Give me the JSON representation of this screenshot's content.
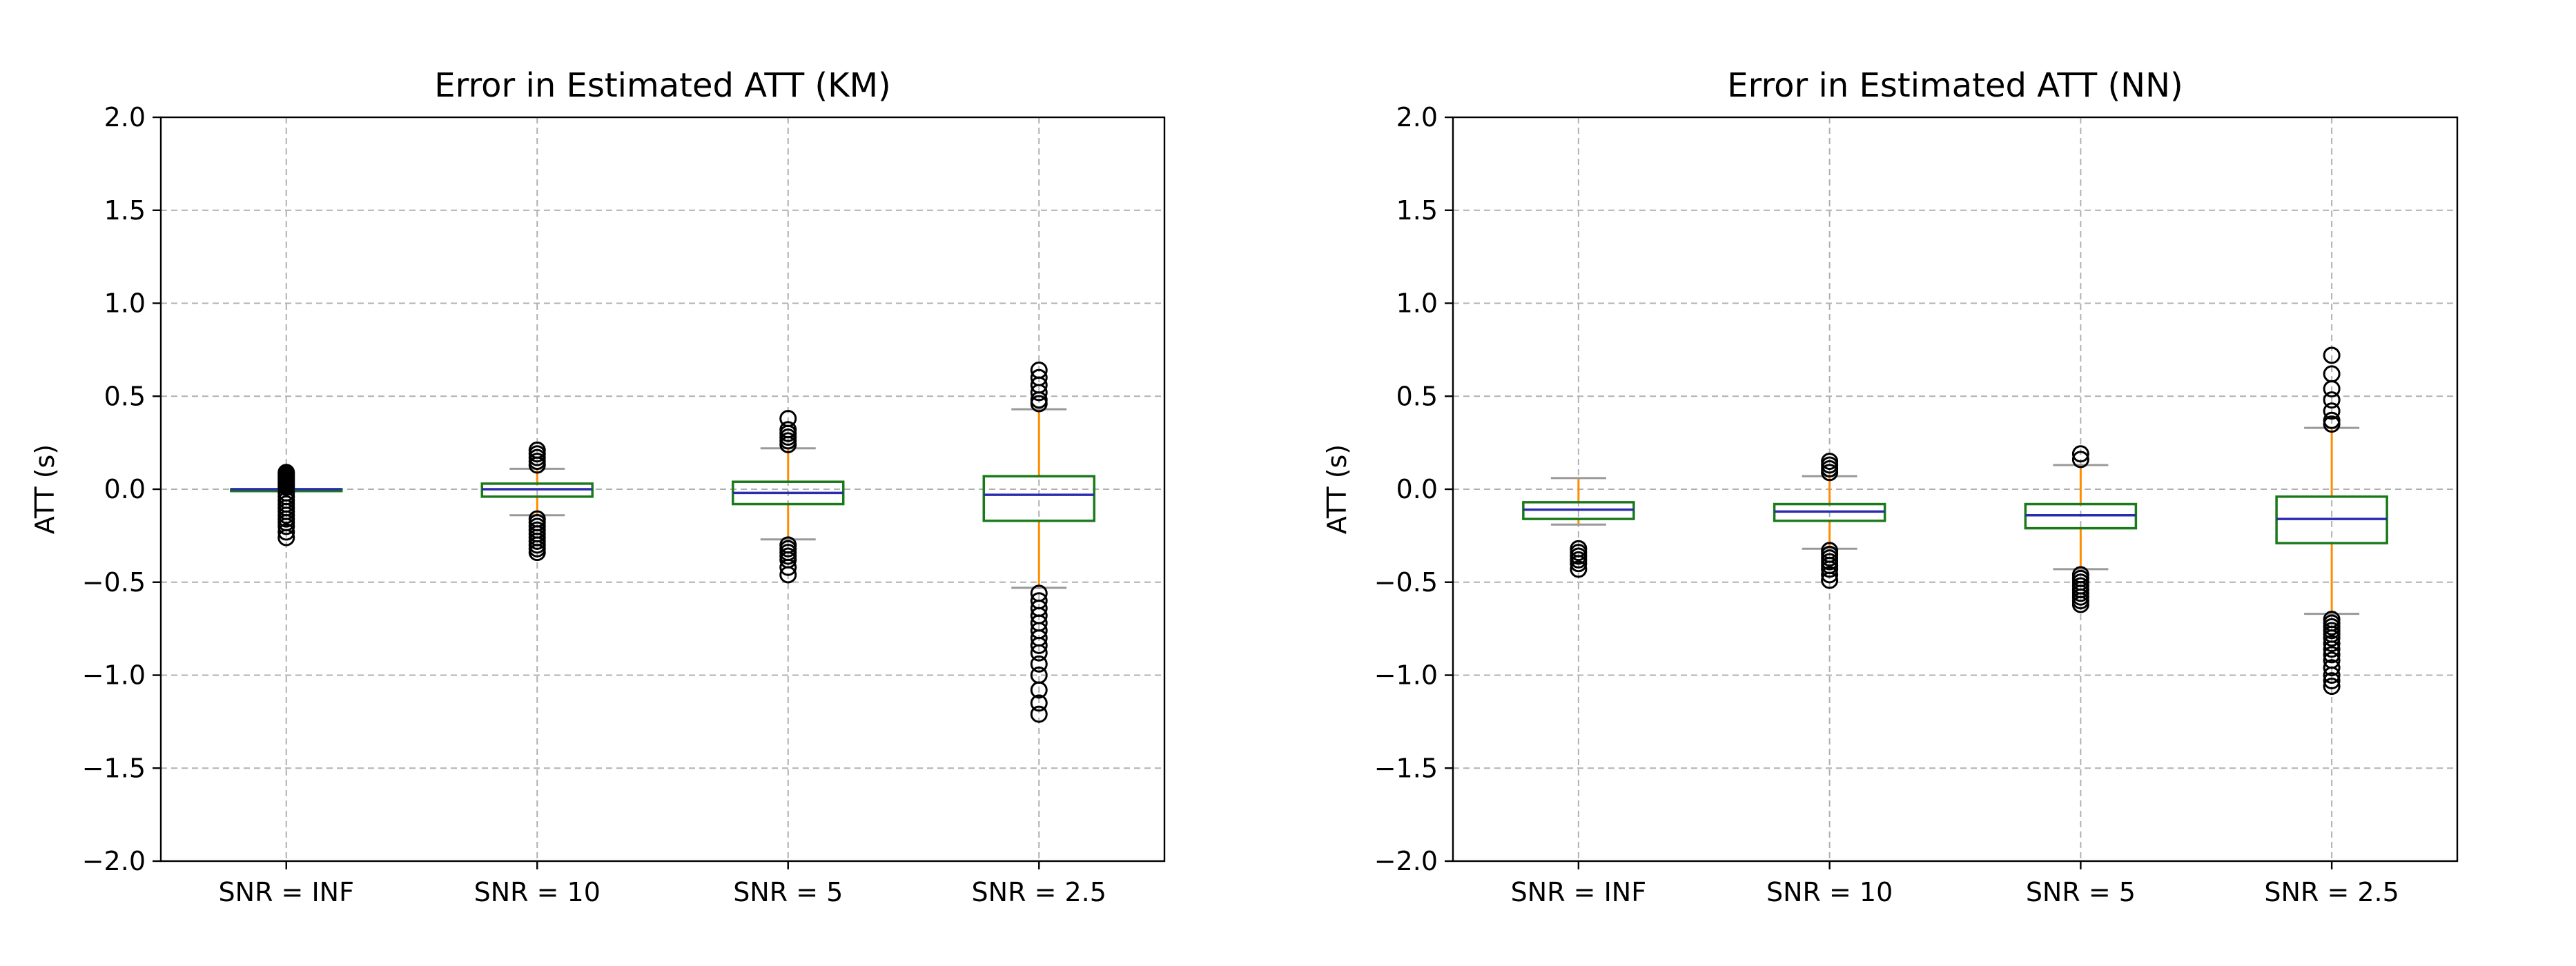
{
  "chart_data": [
    {
      "type": "box",
      "title": "Error in Estimated ATT (KM)",
      "xlabel": "",
      "ylabel": "ATT (s)",
      "ylim": [
        -2.0,
        2.0
      ],
      "yticks": [
        -2.0,
        -1.5,
        -1.0,
        -0.5,
        0.0,
        0.5,
        1.0,
        1.5,
        2.0
      ],
      "ytick_labels": [
        "−2.0",
        "−1.5",
        "−1.0",
        "−0.5",
        "0.0",
        "0.5",
        "1.0",
        "1.5",
        "2.0"
      ],
      "grid": true,
      "categories": [
        "SNR = INF",
        "SNR = 10",
        "SNR = 5",
        "SNR = 2.5"
      ],
      "boxes": [
        {
          "q1": -0.01,
          "median": 0.0,
          "q3": 0.0,
          "whisker_low": -0.01,
          "whisker_high": 0.0,
          "outliers": [
            0.09,
            0.08,
            0.07,
            0.06,
            0.05,
            0.04,
            0.03,
            0.02,
            0.01,
            -0.02,
            -0.04,
            -0.06,
            -0.08,
            -0.1,
            -0.12,
            -0.14,
            -0.16,
            -0.18,
            -0.2,
            -0.23,
            -0.26
          ]
        },
        {
          "q1": -0.04,
          "median": 0.0,
          "q3": 0.03,
          "whisker_low": -0.14,
          "whisker_high": 0.11,
          "outliers": [
            0.21,
            0.19,
            0.17,
            0.15,
            0.13,
            -0.16,
            -0.18,
            -0.2,
            -0.22,
            -0.24,
            -0.26,
            -0.28,
            -0.3,
            -0.32,
            -0.34
          ]
        },
        {
          "q1": -0.08,
          "median": -0.02,
          "q3": 0.04,
          "whisker_low": -0.27,
          "whisker_high": 0.22,
          "outliers": [
            0.38,
            0.32,
            0.3,
            0.28,
            0.26,
            0.24,
            -0.3,
            -0.32,
            -0.34,
            -0.36,
            -0.38,
            -0.42,
            -0.46
          ]
        },
        {
          "q1": -0.17,
          "median": -0.03,
          "q3": 0.07,
          "whisker_low": -0.53,
          "whisker_high": 0.43,
          "outliers": [
            0.64,
            0.6,
            0.56,
            0.52,
            0.48,
            0.46,
            -0.56,
            -0.6,
            -0.64,
            -0.68,
            -0.72,
            -0.76,
            -0.8,
            -0.84,
            -0.88,
            -0.94,
            -1.0,
            -1.08,
            -1.15,
            -1.21
          ]
        }
      ]
    },
    {
      "type": "box",
      "title": "Error in Estimated ATT (NN)",
      "xlabel": "",
      "ylabel": "ATT (s)",
      "ylim": [
        -2.0,
        2.0
      ],
      "yticks": [
        -2.0,
        -1.5,
        -1.0,
        -0.5,
        0.0,
        0.5,
        1.0,
        1.5,
        2.0
      ],
      "ytick_labels": [
        "−2.0",
        "−1.5",
        "−1.0",
        "−0.5",
        "0.0",
        "0.5",
        "1.0",
        "1.5",
        "2.0"
      ],
      "grid": true,
      "categories": [
        "SNR = INF",
        "SNR = 10",
        "SNR = 5",
        "SNR = 2.5"
      ],
      "boxes": [
        {
          "q1": -0.16,
          "median": -0.11,
          "q3": -0.07,
          "whisker_low": -0.19,
          "whisker_high": 0.06,
          "outliers": [
            -0.32,
            -0.34,
            -0.36,
            -0.38,
            -0.4,
            -0.43
          ]
        },
        {
          "q1": -0.17,
          "median": -0.12,
          "q3": -0.08,
          "whisker_low": -0.32,
          "whisker_high": 0.07,
          "outliers": [
            0.15,
            0.13,
            0.11,
            0.09,
            -0.33,
            -0.35,
            -0.37,
            -0.39,
            -0.41,
            -0.43,
            -0.46,
            -0.49
          ]
        },
        {
          "q1": -0.21,
          "median": -0.14,
          "q3": -0.08,
          "whisker_low": -0.43,
          "whisker_high": 0.13,
          "outliers": [
            0.19,
            0.16,
            -0.46,
            -0.48,
            -0.5,
            -0.52,
            -0.54,
            -0.56,
            -0.58,
            -0.6,
            -0.62
          ]
        },
        {
          "q1": -0.29,
          "median": -0.16,
          "q3": -0.04,
          "whisker_low": -0.67,
          "whisker_high": 0.33,
          "outliers": [
            0.72,
            0.62,
            0.54,
            0.48,
            0.42,
            0.37,
            0.35,
            -0.7,
            -0.72,
            -0.74,
            -0.76,
            -0.78,
            -0.8,
            -0.83,
            -0.86,
            -0.89,
            -0.92,
            -0.96,
            -1.0,
            -1.03,
            -1.06
          ]
        }
      ]
    }
  ]
}
